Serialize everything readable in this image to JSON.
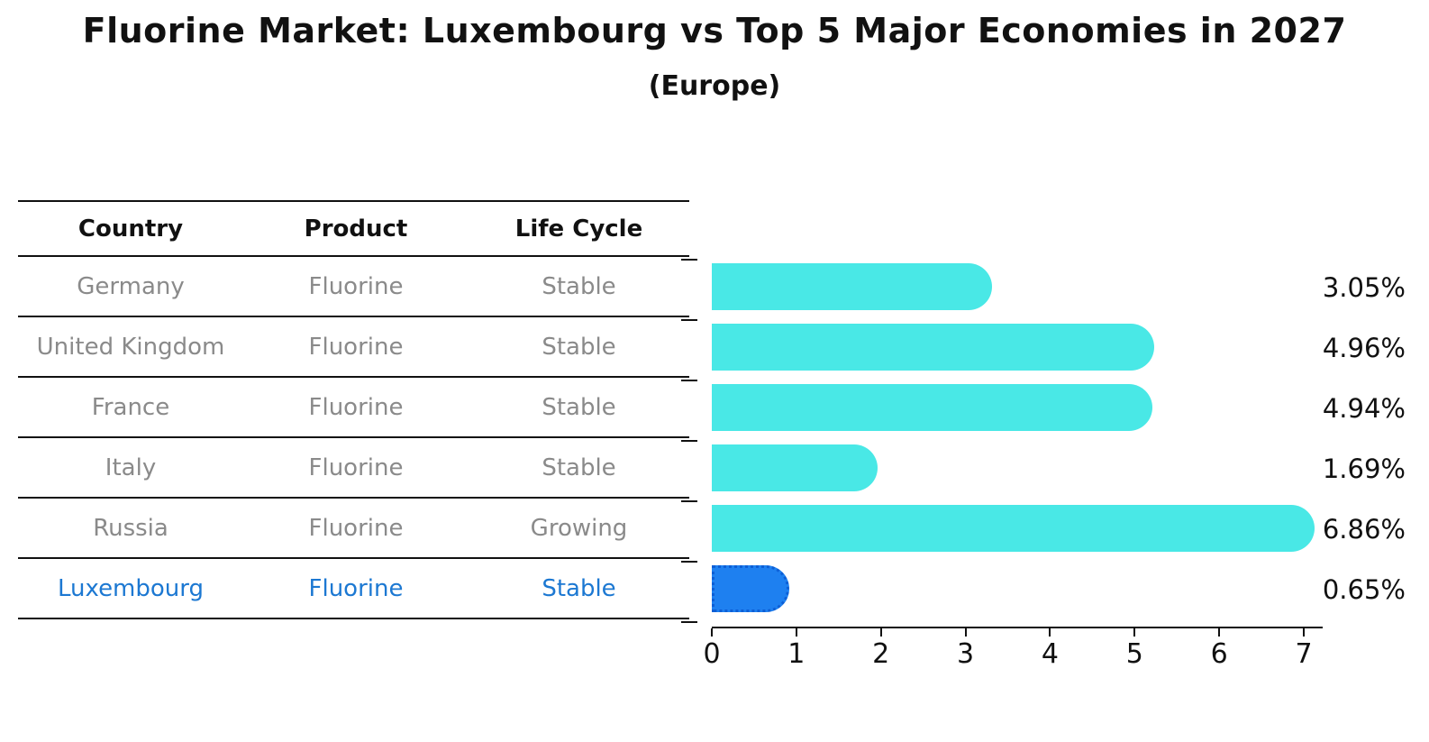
{
  "title": "Fluorine Market: Luxembourg vs Top 5 Major Economies in 2027",
  "subtitle": "(Europe)",
  "table": {
    "headers": [
      "Country",
      "Product",
      "Life Cycle"
    ]
  },
  "chart_data": {
    "type": "bar",
    "orientation": "horizontal",
    "title": "Fluorine Market: Luxembourg vs Top 5 Major Economies in 2027",
    "subtitle": "(Europe)",
    "xlabel": "",
    "ylabel": "",
    "xlim": [
      0,
      7
    ],
    "xticks": [
      0,
      1,
      2,
      3,
      4,
      5,
      6,
      7
    ],
    "grid": false,
    "legend": false,
    "bar_style": "rounded-right-cap",
    "rows": [
      {
        "country": "Germany",
        "product": "Fluorine",
        "life_cycle": "Stable",
        "value": 3.05,
        "value_label": "3.05%",
        "highlight": false
      },
      {
        "country": "United Kingdom",
        "product": "Fluorine",
        "life_cycle": "Stable",
        "value": 4.96,
        "value_label": "4.96%",
        "highlight": false
      },
      {
        "country": "France",
        "product": "Fluorine",
        "life_cycle": "Stable",
        "value": 4.94,
        "value_label": "4.94%",
        "highlight": false
      },
      {
        "country": "Italy",
        "product": "Fluorine",
        "life_cycle": "Stable",
        "value": 1.69,
        "value_label": "1.69%",
        "highlight": false
      },
      {
        "country": "Russia",
        "product": "Fluorine",
        "life_cycle": "Growing",
        "value": 6.86,
        "value_label": "6.86%",
        "highlight": false
      },
      {
        "country": "Luxembourg",
        "product": "Fluorine",
        "life_cycle": "Stable",
        "value": 0.65,
        "value_label": "0.65%",
        "highlight": true
      }
    ]
  },
  "colors": {
    "bar": "#49e8e6",
    "highlight_bar": "#1e80f0",
    "highlight_border": "#0d5fd6",
    "row_text": "#8a8a8a",
    "header_text": "#111111",
    "highlight_text": "#1c78d2",
    "value_text": "#111111",
    "line": "#111111"
  }
}
